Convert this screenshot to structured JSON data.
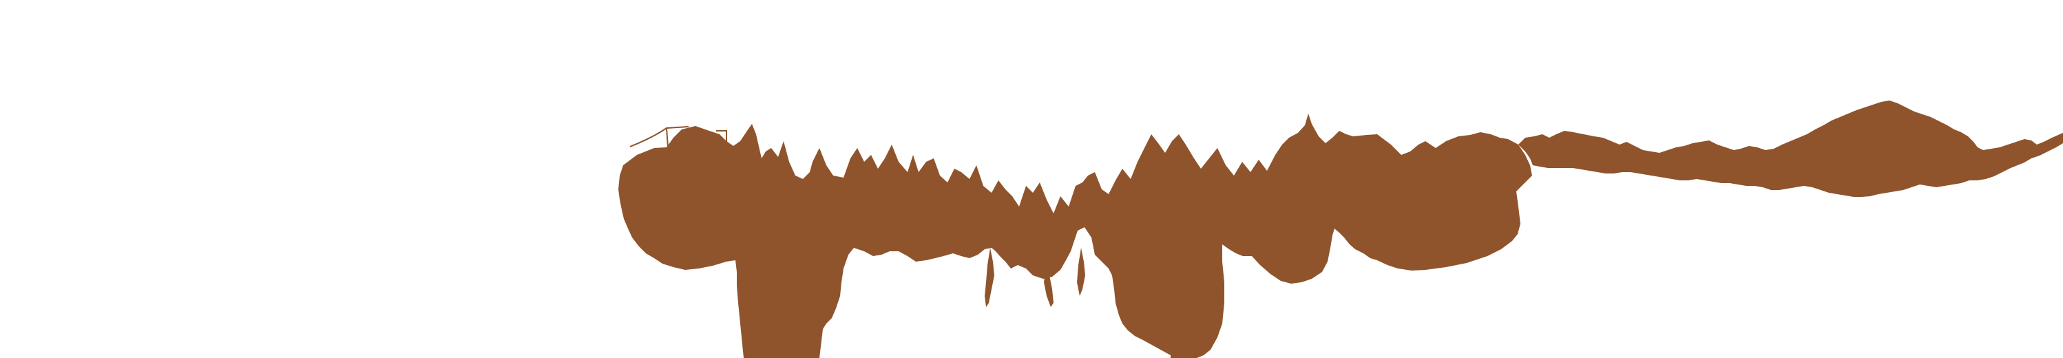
{
  "colors": {
    "background": "#ffffff",
    "ink": "#8f542c"
  },
  "shapes": [
    {
      "name": "stem-left",
      "kind": "drip-column"
    },
    {
      "name": "stem-right",
      "kind": "drip-column"
    },
    {
      "name": "upper-band",
      "kind": "fringe"
    },
    {
      "name": "right-tail",
      "kind": "fringe"
    }
  ]
}
